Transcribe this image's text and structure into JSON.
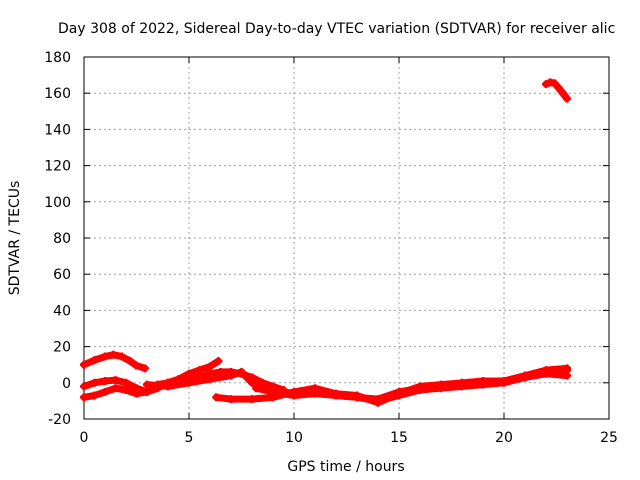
{
  "chart_data": {
    "type": "line",
    "title": "Day 308 of 2022, Sidereal Day-to-day VTEC variation (SDTVAR) for receiver alic",
    "xlabel": "GPS time / hours",
    "ylabel": "SDTVAR / TECUs",
    "xlim": [
      0,
      25
    ],
    "ylim": [
      -20,
      180
    ],
    "xticks": [
      0,
      5,
      10,
      15,
      20,
      25
    ],
    "yticks": [
      -20,
      0,
      20,
      40,
      60,
      80,
      100,
      120,
      140,
      160,
      180
    ],
    "xtick_labels": [
      "0",
      "5",
      "10",
      "15",
      "20",
      "25"
    ],
    "ytick_labels": [
      "-20",
      "0",
      "20",
      "40",
      "60",
      "80",
      "100",
      "120",
      "140",
      "160",
      "180"
    ],
    "grid": true,
    "color": "#ff0000",
    "series": [
      {
        "name": "trace-1",
        "x": [
          0.0,
          0.5,
          1.0,
          1.4,
          1.8,
          2.2,
          2.5,
          2.9
        ],
        "y": [
          10,
          12.5,
          14.5,
          15.5,
          14.5,
          12,
          9.5,
          8
        ]
      },
      {
        "name": "trace-2",
        "x": [
          0.0,
          0.5,
          1.0,
          1.5,
          2.0,
          2.5,
          3.0,
          3.5,
          4.0,
          4.5,
          5.0,
          5.5,
          6.0,
          6.4
        ],
        "y": [
          -2,
          0,
          1,
          1.5,
          0,
          -3,
          -5,
          -3,
          0,
          2,
          5,
          7,
          9,
          12
        ]
      },
      {
        "name": "trace-3",
        "x": [
          0.0,
          0.5,
          1.0,
          1.5,
          2.0,
          2.5,
          3.0,
          3.5,
          4.0,
          4.5,
          5.0,
          5.5,
          6.0,
          6.5,
          7.0,
          7.5,
          8.0,
          8.5,
          9.0,
          9.5
        ],
        "y": [
          -8,
          -7,
          -5,
          -3,
          -4,
          -6,
          -5,
          -1,
          0,
          0,
          1,
          3,
          5,
          6,
          6,
          5,
          3,
          0,
          -2,
          -4
        ]
      },
      {
        "name": "trace-4",
        "x": [
          3.0,
          4.0,
          5.0,
          6.0,
          7.0,
          7.5,
          8.0,
          9.0,
          10.0,
          11.0,
          12.0,
          13.0,
          14.0,
          15.0,
          16.0,
          17.0,
          18.0,
          19.0,
          20.0,
          21.0,
          22.0,
          23.0
        ],
        "y": [
          -1,
          -2,
          0,
          2,
          4,
          6,
          0,
          -4,
          -6,
          -5,
          -7,
          -8,
          -10,
          -7,
          -4,
          -3,
          -2,
          -1,
          0,
          3,
          6,
          7
        ]
      },
      {
        "name": "trace-5",
        "x": [
          6.3,
          7.0,
          8.0,
          9.0,
          10.0,
          11.0,
          12.0,
          13.0,
          14.0,
          15.0,
          16.0,
          17.0,
          18.0,
          19.0,
          20.0,
          21.0,
          22.0,
          23.0
        ],
        "y": [
          -8,
          -9,
          -9,
          -8,
          -5,
          -3,
          -6,
          -7,
          -11,
          -6,
          -2,
          -1,
          0,
          1,
          1,
          3,
          5,
          4
        ]
      },
      {
        "name": "trace-6",
        "x": [
          8.2,
          9.0,
          10.0,
          11.0,
          12.0,
          13.0,
          14.0,
          15.0,
          16.0,
          17.0,
          18.0,
          19.0,
          20.0,
          21.0,
          22.0,
          23.0
        ],
        "y": [
          -3,
          -5,
          -7,
          -6,
          -7,
          -8,
          -9,
          -5,
          -3,
          -2,
          -1,
          0,
          1,
          4,
          7,
          8
        ]
      },
      {
        "name": "trace-7",
        "x": [
          22.0,
          22.2,
          22.4,
          22.6,
          22.8,
          23.0
        ],
        "y": [
          165,
          166,
          165.5,
          163,
          160,
          157
        ]
      }
    ]
  }
}
